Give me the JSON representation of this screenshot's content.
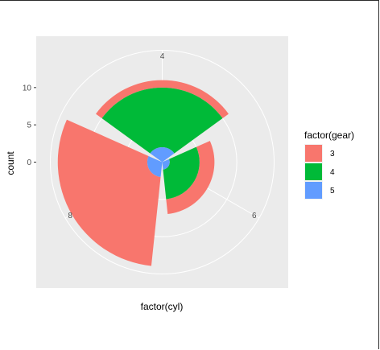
{
  "chart_data": {
    "type": "bar",
    "coord": "polar",
    "xlabel": "factor(cyl)",
    "ylabel": "count",
    "categories": [
      "4",
      "6",
      "8"
    ],
    "y_ticks": [
      "0",
      "5",
      "10"
    ],
    "ylim": [
      0,
      15
    ],
    "legend": {
      "title": "factor(gear)",
      "position": "right"
    },
    "series": [
      {
        "name": "3",
        "color": "#F8766D",
        "values": [
          1,
          2,
          12
        ]
      },
      {
        "name": "4",
        "color": "#00BA38",
        "values": [
          8,
          4,
          0
        ]
      },
      {
        "name": "5",
        "color": "#619CFF",
        "values": [
          2,
          1,
          2
        ]
      }
    ],
    "grid": true
  }
}
